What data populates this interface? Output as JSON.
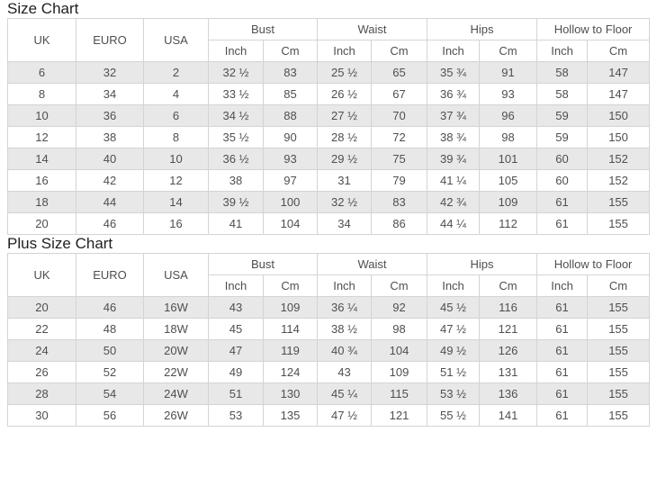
{
  "columns": {
    "uk": "UK",
    "euro": "EURO",
    "usa": "USA",
    "bust": "Bust",
    "waist": "Waist",
    "hips": "Hips",
    "hollow_to_floor": "Hollow to Floor",
    "inch": "Inch",
    "cm": "Cm"
  },
  "size_chart": {
    "title": "Size Chart",
    "rows": [
      [
        "6",
        "32",
        "2",
        "32 ½",
        "83",
        "25 ½",
        "65",
        "35 ¾",
        "91",
        "58",
        "147"
      ],
      [
        "8",
        "34",
        "4",
        "33 ½",
        "85",
        "26 ½",
        "67",
        "36 ¾",
        "93",
        "58",
        "147"
      ],
      [
        "10",
        "36",
        "6",
        "34 ½",
        "88",
        "27 ½",
        "70",
        "37 ¾",
        "96",
        "59",
        "150"
      ],
      [
        "12",
        "38",
        "8",
        "35 ½",
        "90",
        "28 ½",
        "72",
        "38 ¾",
        "98",
        "59",
        "150"
      ],
      [
        "14",
        "40",
        "10",
        "36 ½",
        "93",
        "29 ½",
        "75",
        "39 ¾",
        "101",
        "60",
        "152"
      ],
      [
        "16",
        "42",
        "12",
        "38",
        "97",
        "31",
        "79",
        "41 ¼",
        "105",
        "60",
        "152"
      ],
      [
        "18",
        "44",
        "14",
        "39 ½",
        "100",
        "32 ½",
        "83",
        "42 ¾",
        "109",
        "61",
        "155"
      ],
      [
        "20",
        "46",
        "16",
        "41",
        "104",
        "34",
        "86",
        "44 ¼",
        "112",
        "61",
        "155"
      ]
    ]
  },
  "plus_size_chart": {
    "title": "Plus Size Chart",
    "rows": [
      [
        "20",
        "46",
        "16W",
        "43",
        "109",
        "36 ¼",
        "92",
        "45 ½",
        "116",
        "61",
        "155"
      ],
      [
        "22",
        "48",
        "18W",
        "45",
        "114",
        "38 ½",
        "98",
        "47 ½",
        "121",
        "61",
        "155"
      ],
      [
        "24",
        "50",
        "20W",
        "47",
        "119",
        "40 ¾",
        "104",
        "49 ½",
        "126",
        "61",
        "155"
      ],
      [
        "26",
        "52",
        "22W",
        "49",
        "124",
        "43",
        "109",
        "51 ½",
        "131",
        "61",
        "155"
      ],
      [
        "28",
        "54",
        "24W",
        "51",
        "130",
        "45 ¼",
        "115",
        "53 ½",
        "136",
        "61",
        "155"
      ],
      [
        "30",
        "56",
        "26W",
        "53",
        "135",
        "47 ½",
        "121",
        "55 ½",
        "141",
        "61",
        "155"
      ]
    ]
  },
  "colors": {
    "stripe_row": "#e8e8e8",
    "border": "#d4d4d4",
    "text": "#4f4f4f",
    "title_text": "#1f1f1f"
  }
}
